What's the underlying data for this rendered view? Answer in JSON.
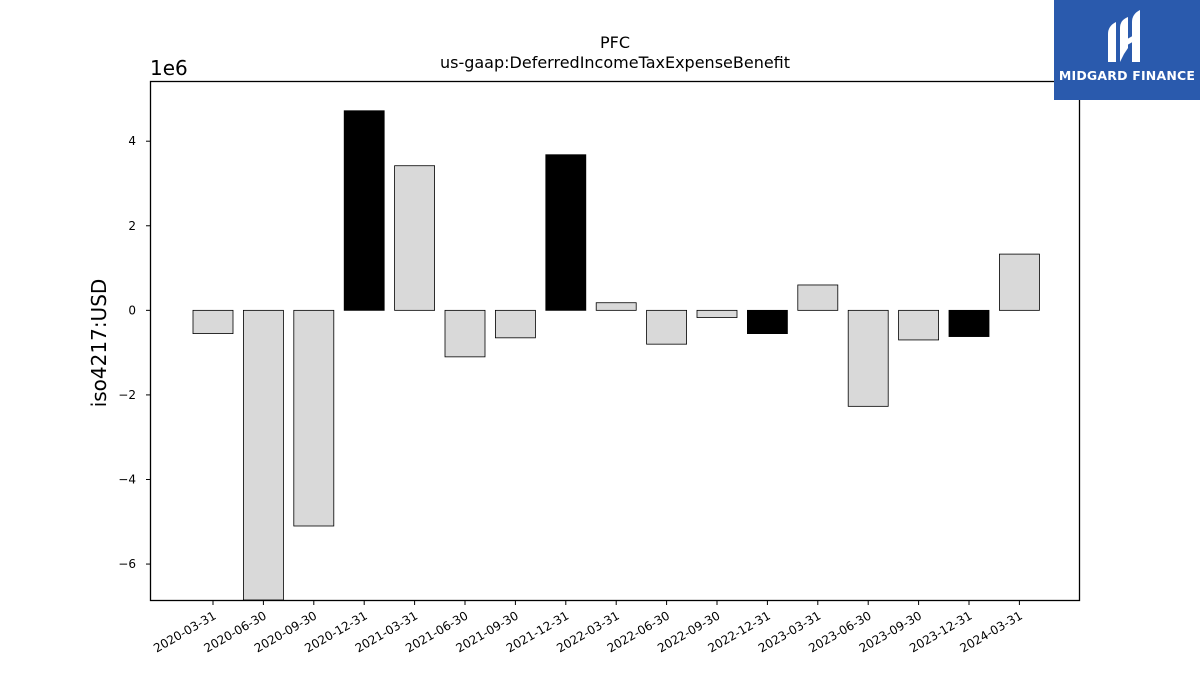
{
  "brand": {
    "name": "MIDGARD FINANCE",
    "background_color": "#2a5aad",
    "text_color": "#ffffff",
    "icon": "midgard-logo-icon"
  },
  "chart_data": {
    "type": "bar",
    "title": "PFC",
    "subtitle": "us-gaap:DeferredIncomeTaxExpenseBenefit",
    "ylabel": "iso4217:USD",
    "xlabel": "",
    "y_scale_label": "1e6",
    "ylim": [
      -6.85,
      5.4
    ],
    "yticks": [
      -6,
      -4,
      -2,
      0,
      2,
      4
    ],
    "ytick_labels": [
      "−6",
      "−4",
      "−2",
      "0",
      "2",
      "4"
    ],
    "categories": [
      "2020-03-31",
      "2020-06-30",
      "2020-09-30",
      "2020-12-31",
      "2021-03-31",
      "2021-06-30",
      "2021-09-30",
      "2021-12-31",
      "2022-03-31",
      "2022-06-30",
      "2022-09-30",
      "2022-12-31",
      "2023-03-31",
      "2023-06-30",
      "2023-09-30",
      "2023-12-31",
      "2024-03-31"
    ],
    "values": [
      -0.55,
      -6.9,
      -5.1,
      4.72,
      3.42,
      -1.1,
      -0.65,
      3.68,
      0.18,
      -0.8,
      -0.17,
      -0.55,
      0.6,
      -2.27,
      -0.7,
      -0.62,
      1.33
    ],
    "highlight": [
      false,
      false,
      false,
      true,
      false,
      false,
      false,
      true,
      false,
      false,
      false,
      true,
      false,
      false,
      false,
      true,
      false
    ],
    "colors": {
      "normal": "#d9d9d9",
      "highlight": "#000000",
      "edge": "#000000"
    },
    "grid": false,
    "legend": "none"
  }
}
